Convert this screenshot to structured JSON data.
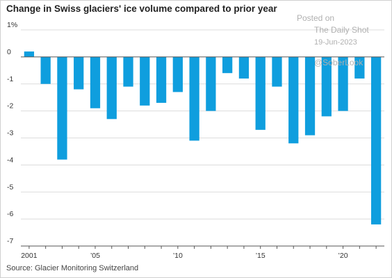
{
  "chart_data": {
    "type": "bar",
    "title": "Change in Swiss glaciers' ice volume compared to prior year",
    "xlabel": "",
    "ylabel": "",
    "source": "Source: Glacier Monitoring Switzerland",
    "years": [
      2001,
      2002,
      2003,
      2004,
      2005,
      2006,
      2007,
      2008,
      2009,
      2010,
      2011,
      2012,
      2013,
      2014,
      2015,
      2016,
      2017,
      2018,
      2019,
      2020,
      2021,
      2022
    ],
    "values": [
      0.2,
      -1.0,
      -3.8,
      -1.2,
      -1.9,
      -2.3,
      -1.1,
      -1.8,
      -1.7,
      -1.3,
      -3.1,
      -2.0,
      -0.6,
      -0.8,
      -2.7,
      -1.1,
      -3.2,
      -2.9,
      -2.2,
      -2.0,
      -0.8,
      -6.2
    ],
    "ylim": [
      -7,
      1
    ],
    "y_ticks": [
      {
        "v": 1,
        "label": "1%"
      },
      {
        "v": 0,
        "label": "0"
      },
      {
        "v": -1,
        "label": "-1"
      },
      {
        "v": -2,
        "label": "-2"
      },
      {
        "v": -3,
        "label": "-3"
      },
      {
        "v": -4,
        "label": "-4"
      },
      {
        "v": -5,
        "label": "-5"
      },
      {
        "v": -6,
        "label": "-6"
      },
      {
        "v": -7,
        "label": "-7"
      }
    ],
    "x_ticks": [
      {
        "year": 2001,
        "label": "2001"
      },
      {
        "year": 2005,
        "label": "’05"
      },
      {
        "year": 2010,
        "label": "’10"
      },
      {
        "year": 2015,
        "label": "’15"
      },
      {
        "year": 2020,
        "label": "’20"
      }
    ],
    "bar_color": "#0f9ede",
    "grid": true
  },
  "watermark": {
    "line1": "Posted on",
    "line2": "The Daily Shot",
    "line3": "19-Jun-2023",
    "line4": "@SoberLook"
  }
}
